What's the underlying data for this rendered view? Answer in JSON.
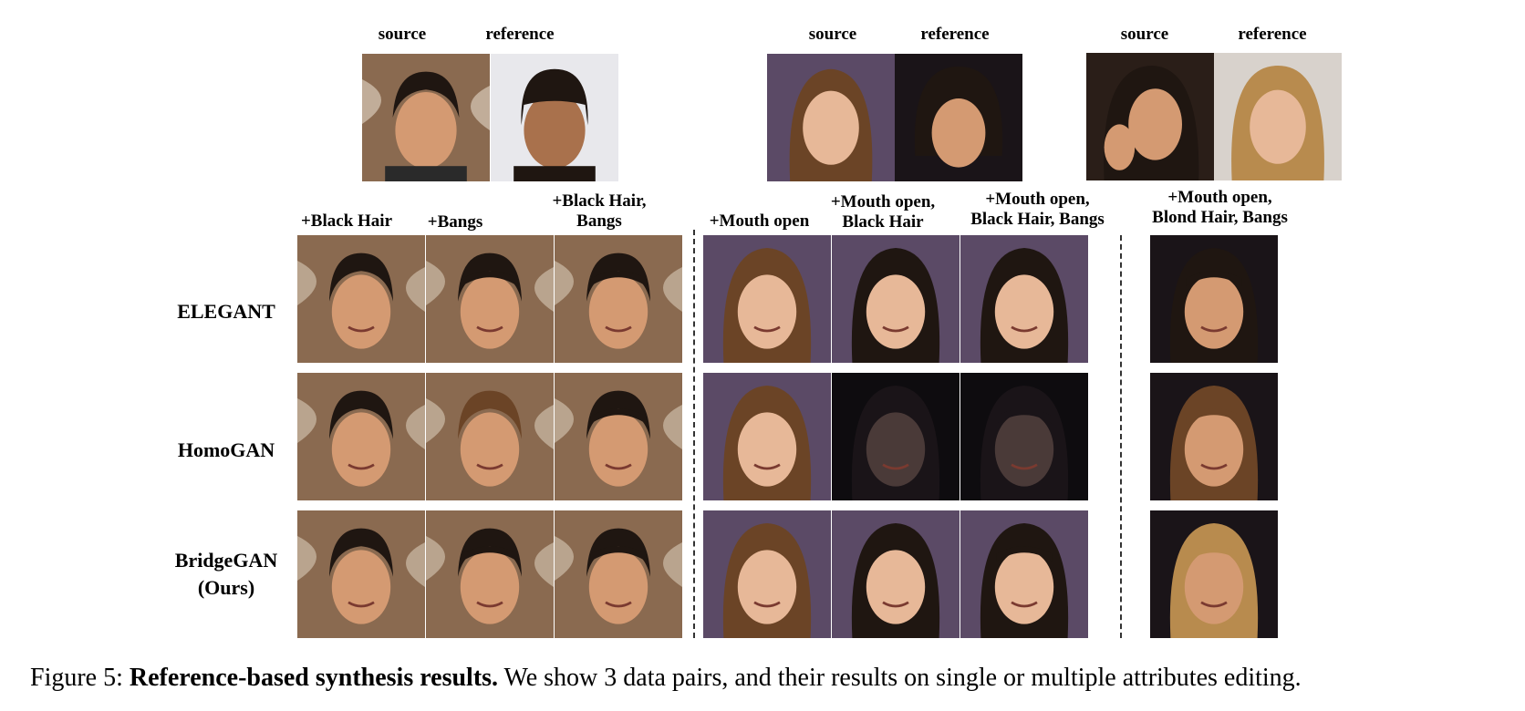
{
  "groups": [
    {
      "source_label": "source",
      "reference_label": "reference",
      "attributes": [
        [
          "+Black Hair"
        ],
        [
          "+Bangs"
        ],
        [
          "+Black Hair,",
          "Bangs"
        ]
      ]
    },
    {
      "source_label": "source",
      "reference_label": "reference",
      "attributes": [
        [
          "+Mouth open"
        ],
        [
          "+Mouth open,",
          "Black Hair"
        ],
        [
          "+Mouth open,",
          "Black Hair, Bangs"
        ]
      ]
    },
    {
      "source_label": "source",
      "reference_label": "reference",
      "attributes": [
        [
          "+Mouth open,",
          "Blond Hair, Bangs"
        ]
      ]
    }
  ],
  "methods": [
    [
      "ELEGANT"
    ],
    [
      "HomoGAN"
    ],
    [
      "BridgeGAN",
      "(Ours)"
    ]
  ],
  "caption": {
    "prefix": "Figure 5: ",
    "bold": "Reference-based synthesis results.",
    "rest": " We show 3 data pairs, and their results on single or multiple attributes editing."
  },
  "palette": {
    "face_light": "#e7b898",
    "face_warm": "#d49a72",
    "face_dark": "#a9714c",
    "hair_black": "#1f1611",
    "hair_brown": "#6b4426",
    "hair_blond": "#b88b4e",
    "bg_brown": "#8a6a50",
    "bg_dark": "#1a1418",
    "bg_light": "#d8d2cc",
    "bg_purple": "#5b4a66"
  }
}
